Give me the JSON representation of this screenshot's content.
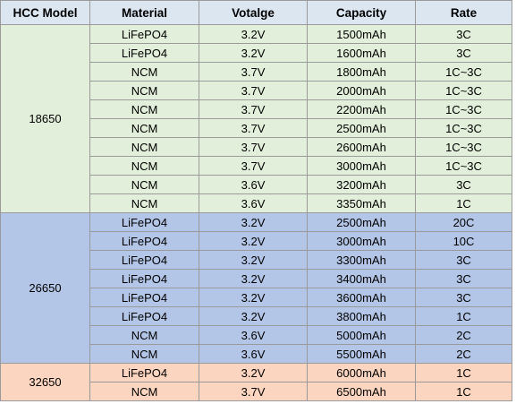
{
  "table": {
    "header": [
      "HCC Model",
      "Material",
      "Votalge",
      "Capacity",
      "Rate"
    ],
    "groups": [
      {
        "model": "18650",
        "rows": [
          [
            "LiFePO4",
            "3.2V",
            "1500mAh",
            "3C"
          ],
          [
            "LiFePO4",
            "3.2V",
            "1600mAh",
            "3C"
          ],
          [
            "NCM",
            "3.7V",
            "1800mAh",
            "1C~3C"
          ],
          [
            "NCM",
            "3.7V",
            "2000mAh",
            "1C~3C"
          ],
          [
            "NCM",
            "3.7V",
            "2200mAh",
            "1C~3C"
          ],
          [
            "NCM",
            "3.7V",
            "2500mAh",
            "1C~3C"
          ],
          [
            "NCM",
            "3.7V",
            "2600mAh",
            "1C~3C"
          ],
          [
            "NCM",
            "3.7V",
            "3000mAh",
            "1C~3C"
          ],
          [
            "NCM",
            "3.6V",
            "3200mAh",
            "3C"
          ],
          [
            "NCM",
            "3.6V",
            "3350mAh",
            "1C"
          ]
        ]
      },
      {
        "model": "26650",
        "rows": [
          [
            "LiFePO4",
            "3.2V",
            "2500mAh",
            "20C"
          ],
          [
            "LiFePO4",
            "3.2V",
            "3000mAh",
            "10C"
          ],
          [
            "LiFePO4",
            "3.2V",
            "3300mAh",
            "3C"
          ],
          [
            "LiFePO4",
            "3.2V",
            "3400mAh",
            "3C"
          ],
          [
            "LiFePO4",
            "3.2V",
            "3600mAh",
            "3C"
          ],
          [
            "LiFePO4",
            "3.2V",
            "3800mAh",
            "1C"
          ],
          [
            "NCM",
            "3.6V",
            "5000mAh",
            "2C"
          ],
          [
            "NCM",
            "3.6V",
            "5500mAh",
            "2C"
          ]
        ]
      },
      {
        "model": "32650",
        "rows": [
          [
            "LiFePO4",
            "3.2V",
            "6000mAh",
            "1C"
          ],
          [
            "NCM",
            "3.7V",
            "6500mAh",
            "1C"
          ]
        ]
      }
    ]
  }
}
